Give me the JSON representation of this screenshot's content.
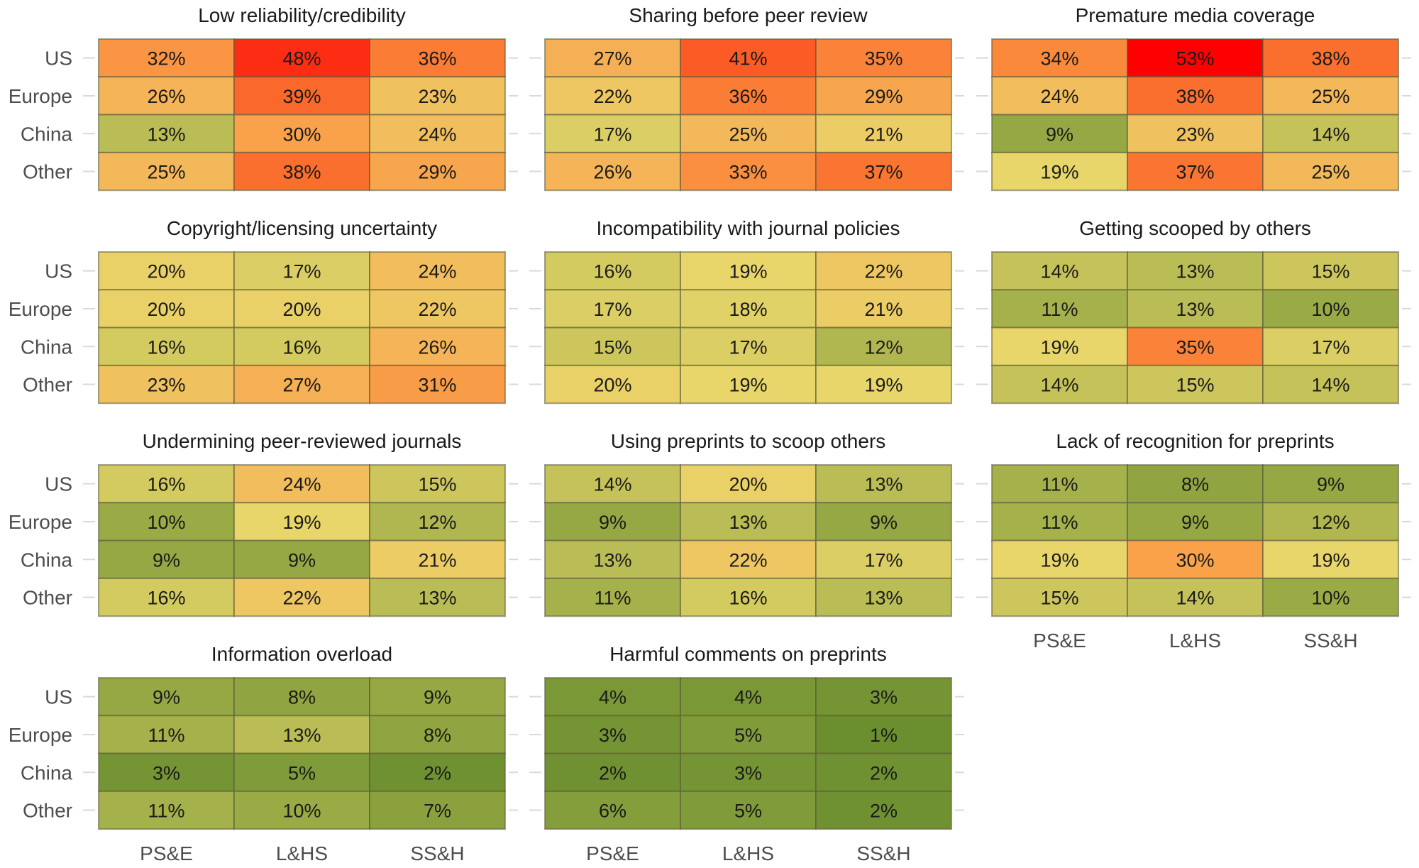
{
  "chart_data": {
    "type": "heatmap",
    "title": "",
    "row_labels": [
      "US",
      "Europe",
      "China",
      "Other"
    ],
    "col_labels": [
      "PS&E",
      "L&HS",
      "SS&H"
    ],
    "value_format": "percent",
    "color_scale": {
      "low": "#6b8e2f",
      "mid_low": "#a8b24a",
      "mid": "#e8d66a",
      "mid_high": "#f9a24a",
      "high": "#ff0000",
      "domain": [
        1,
        53
      ]
    },
    "panels": [
      {
        "title": "Low reliability/credibility",
        "values": [
          [
            32,
            48,
            36
          ],
          [
            26,
            39,
            23
          ],
          [
            13,
            30,
            24
          ],
          [
            25,
            38,
            29
          ]
        ]
      },
      {
        "title": "Sharing before peer review",
        "values": [
          [
            27,
            41,
            35
          ],
          [
            22,
            36,
            29
          ],
          [
            17,
            25,
            21
          ],
          [
            26,
            33,
            37
          ]
        ]
      },
      {
        "title": "Premature media coverage",
        "values": [
          [
            34,
            53,
            38
          ],
          [
            24,
            38,
            25
          ],
          [
            9,
            23,
            14
          ],
          [
            19,
            37,
            25
          ]
        ]
      },
      {
        "title": "Copyright/licensing uncertainty",
        "values": [
          [
            20,
            17,
            24
          ],
          [
            20,
            20,
            22
          ],
          [
            16,
            16,
            26
          ],
          [
            23,
            27,
            31
          ]
        ]
      },
      {
        "title": "Incompatibility with journal policies",
        "values": [
          [
            16,
            19,
            22
          ],
          [
            17,
            18,
            21
          ],
          [
            15,
            17,
            12
          ],
          [
            20,
            19,
            19
          ]
        ]
      },
      {
        "title": "Getting scooped by others",
        "values": [
          [
            14,
            13,
            15
          ],
          [
            11,
            13,
            10
          ],
          [
            19,
            35,
            17
          ],
          [
            14,
            15,
            14
          ]
        ]
      },
      {
        "title": "Undermining peer-reviewed journals",
        "values": [
          [
            16,
            24,
            15
          ],
          [
            10,
            19,
            12
          ],
          [
            9,
            9,
            21
          ],
          [
            16,
            22,
            13
          ]
        ]
      },
      {
        "title": "Using preprints to scoop others",
        "values": [
          [
            14,
            20,
            13
          ],
          [
            9,
            13,
            9
          ],
          [
            13,
            22,
            17
          ],
          [
            11,
            16,
            13
          ]
        ]
      },
      {
        "title": "Lack of recognition for preprints",
        "values": [
          [
            11,
            8,
            9
          ],
          [
            11,
            9,
            12
          ],
          [
            19,
            30,
            19
          ],
          [
            15,
            14,
            10
          ]
        ]
      },
      {
        "title": "Information overload",
        "values": [
          [
            9,
            8,
            9
          ],
          [
            11,
            13,
            8
          ],
          [
            3,
            5,
            2
          ],
          [
            11,
            10,
            7
          ]
        ]
      },
      {
        "title": "Harmful comments on preprints",
        "values": [
          [
            4,
            4,
            3
          ],
          [
            3,
            5,
            1
          ],
          [
            2,
            3,
            2
          ],
          [
            6,
            5,
            2
          ]
        ]
      }
    ],
    "row_labels_shown_on_panels": [
      0,
      3,
      6,
      9
    ],
    "col_labels_shown_on_panels": [
      8,
      9,
      10
    ],
    "legend": "none",
    "grid": false
  }
}
